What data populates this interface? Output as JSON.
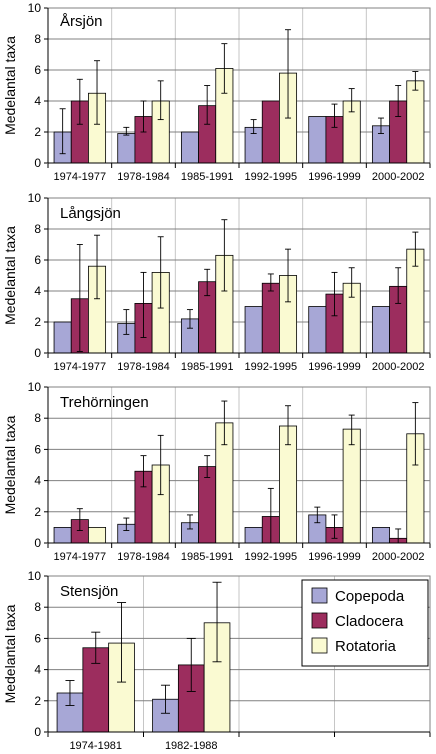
{
  "colors": {
    "copepoda": "#a7a7d6",
    "cladocera": "#9c2d5e",
    "rotatoria": "#fafad2",
    "grid": "#808080",
    "frame": "#808080"
  },
  "legend": {
    "entries": [
      "Copepoda",
      "Cladocera",
      "Rotatoria"
    ]
  },
  "chart_data": [
    {
      "type": "bar",
      "title": "Årsjön",
      "ylabel": "Medelantal taxa",
      "ylim": [
        0,
        10
      ],
      "yticks": [
        0,
        2,
        4,
        6,
        8,
        10
      ],
      "grid": true,
      "categories": [
        "1974-1977",
        "1978-1984",
        "1985-1991",
        "1992-1995",
        "1996-1999",
        "2000-2002"
      ],
      "series": [
        {
          "name": "Copepoda",
          "values": [
            2.0,
            1.9,
            2.0,
            2.3,
            3.0,
            2.4
          ],
          "err_low": [
            0.6,
            1.8,
            2.0,
            1.9,
            3.0,
            1.9
          ],
          "err_high": [
            3.5,
            2.3,
            2.0,
            2.8,
            3.0,
            2.9
          ]
        },
        {
          "name": "Cladocera",
          "values": [
            4.0,
            3.0,
            3.7,
            4.0,
            3.0,
            4.0
          ],
          "err_low": [
            2.5,
            2.0,
            2.5,
            4.0,
            2.3,
            3.0
          ],
          "err_high": [
            5.4,
            4.0,
            5.0,
            4.0,
            3.8,
            5.0
          ]
        },
        {
          "name": "Rotatoria",
          "values": [
            4.5,
            4.0,
            6.1,
            5.8,
            4.0,
            5.3
          ],
          "err_low": [
            2.5,
            2.8,
            4.5,
            2.9,
            3.3,
            4.7
          ],
          "err_high": [
            6.6,
            5.3,
            7.7,
            8.6,
            4.8,
            5.9
          ]
        }
      ]
    },
    {
      "type": "bar",
      "title": "Långsjön",
      "ylabel": "Medelantal taxa",
      "ylim": [
        0,
        10
      ],
      "yticks": [
        0,
        2,
        4,
        6,
        8,
        10
      ],
      "grid": true,
      "categories": [
        "1974-1977",
        "1978-1984",
        "1985-1991",
        "1992-1995",
        "1996-1999",
        "2000-2002"
      ],
      "series": [
        {
          "name": "Copepoda",
          "values": [
            2.0,
            1.9,
            2.2,
            3.0,
            3.0,
            3.0
          ],
          "err_low": [
            2.0,
            1.2,
            1.6,
            3.0,
            3.0,
            3.0
          ],
          "err_high": [
            2.0,
            2.8,
            2.8,
            3.0,
            3.0,
            3.0
          ]
        },
        {
          "name": "Cladocera",
          "values": [
            3.5,
            3.2,
            4.6,
            4.5,
            3.8,
            4.3
          ],
          "err_low": [
            0.1,
            1.0,
            3.7,
            4.0,
            2.4,
            3.2
          ],
          "err_high": [
            7.0,
            5.2,
            5.4,
            5.1,
            5.2,
            5.5
          ]
        },
        {
          "name": "Rotatoria",
          "values": [
            5.6,
            5.2,
            6.3,
            5.0,
            4.5,
            6.7
          ],
          "err_low": [
            3.5,
            2.9,
            4.0,
            3.3,
            3.6,
            5.6
          ],
          "err_high": [
            7.6,
            7.5,
            8.6,
            6.7,
            5.5,
            7.8
          ]
        }
      ]
    },
    {
      "type": "bar",
      "title": "Trehörningen",
      "ylabel": "Medelantal taxa",
      "ylim": [
        0,
        10
      ],
      "yticks": [
        0,
        2,
        4,
        6,
        8,
        10
      ],
      "grid": true,
      "categories": [
        "1974-1977",
        "1978-1984",
        "1985-1991",
        "1992-1995",
        "1996-1999",
        "2000-2002"
      ],
      "series": [
        {
          "name": "Copepoda",
          "values": [
            1.0,
            1.2,
            1.3,
            1.0,
            1.8,
            1.0
          ],
          "err_low": [
            1.0,
            0.8,
            0.9,
            1.0,
            1.3,
            1.0
          ],
          "err_high": [
            1.0,
            1.6,
            1.8,
            1.0,
            2.3,
            1.0
          ]
        },
        {
          "name": "Cladocera",
          "values": [
            1.5,
            4.6,
            4.9,
            1.7,
            1.0,
            0.3
          ],
          "err_low": [
            0.8,
            3.6,
            4.2,
            0.0,
            0.3,
            0.0
          ],
          "err_high": [
            2.2,
            5.6,
            5.6,
            3.5,
            1.8,
            0.9
          ]
        },
        {
          "name": "Rotatoria",
          "values": [
            1.0,
            5.0,
            7.7,
            7.5,
            7.3,
            7.0
          ],
          "err_low": [
            1.0,
            3.1,
            6.3,
            6.3,
            6.3,
            5.0
          ],
          "err_high": [
            1.0,
            6.9,
            9.1,
            8.8,
            8.2,
            9.0
          ]
        }
      ]
    },
    {
      "type": "bar",
      "title": "Stensjön",
      "ylabel": "Medelantal taxa",
      "ylim": [
        0,
        10
      ],
      "yticks": [
        0,
        2,
        4,
        6,
        8,
        10
      ],
      "grid": true,
      "legend_position": "top-right",
      "categories": [
        "1974-1981",
        "1982-1988",
        "",
        ""
      ],
      "series": [
        {
          "name": "Copepoda",
          "values": [
            2.5,
            2.1,
            null,
            null
          ],
          "err_low": [
            1.7,
            1.2,
            null,
            null
          ],
          "err_high": [
            3.3,
            3.0,
            null,
            null
          ]
        },
        {
          "name": "Cladocera",
          "values": [
            5.4,
            4.3,
            null,
            null
          ],
          "err_low": [
            4.4,
            2.6,
            null,
            null
          ],
          "err_high": [
            6.4,
            6.0,
            null,
            null
          ]
        },
        {
          "name": "Rotatoria",
          "values": [
            5.7,
            7.0,
            null,
            null
          ],
          "err_low": [
            3.2,
            4.5,
            null,
            null
          ],
          "err_high": [
            8.3,
            9.6,
            null,
            null
          ]
        }
      ]
    }
  ]
}
